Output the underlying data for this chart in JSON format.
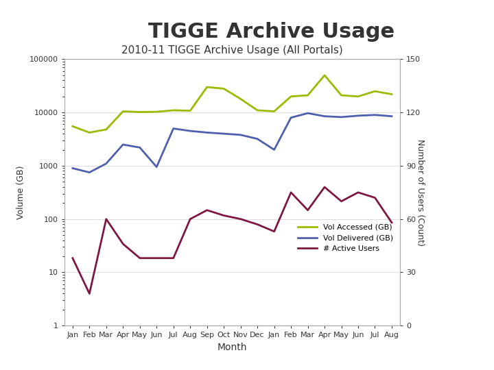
{
  "title_main": "TIGGE Archive Usage",
  "title_sub": "2010-11 TIGGE Archive Usage (All Portals)",
  "months": [
    "Jan",
    "Feb",
    "Mar",
    "Apr",
    "May",
    "Jun",
    "Jul",
    "Aug",
    "Sep",
    "Oct",
    "Nov",
    "Dec",
    "Jan",
    "Feb",
    "Mar",
    "Apr",
    "May",
    "Jun",
    "Jul",
    "Aug"
  ],
  "vol_accessed": [
    5500,
    4200,
    4800,
    10500,
    10200,
    10300,
    11000,
    10800,
    30000,
    28000,
    18000,
    11000,
    10500,
    20000,
    21000,
    50000,
    21000,
    20000,
    25000,
    22000
  ],
  "vol_delivered": [
    900,
    750,
    1100,
    2500,
    2200,
    950,
    5000,
    4500,
    4200,
    4000,
    3800,
    3200,
    2000,
    8000,
    9700,
    8500,
    8200,
    8700,
    9000,
    8500
  ],
  "active_users": [
    38,
    18,
    60,
    46,
    38,
    38,
    38,
    60,
    65,
    62,
    60,
    57,
    53,
    75,
    65,
    78,
    70,
    75,
    72,
    58
  ],
  "color_accessed": "#9BBB00",
  "color_delivered": "#4F5FAE",
  "color_users": "#7F1640",
  "ylabel_left": "Volume (GB)",
  "ylabel_right": "Number of Users (Count)",
  "xlabel": "Month",
  "ylim_left_log": true,
  "ylim_left": [
    1,
    100000
  ],
  "ylim_right": [
    0,
    150
  ],
  "yticks_right": [
    0,
    30,
    60,
    90,
    120,
    150
  ],
  "legend_labels": [
    "Vol Accessed (GB)",
    "Vol Delivered (GB)",
    "# Active Users"
  ],
  "background_color": "#ffffff",
  "grid_color": "#dddddd"
}
